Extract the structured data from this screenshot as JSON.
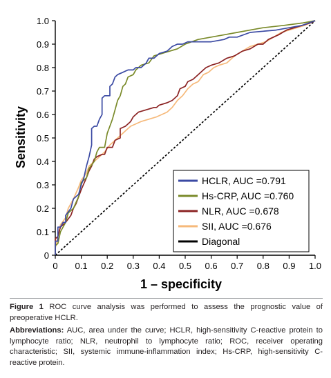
{
  "chart_data": {
    "type": "line",
    "title": "",
    "xlabel": "1 – specificity",
    "ylabel": "Sensitivity",
    "xlim": [
      0,
      1
    ],
    "ylim": [
      0,
      1
    ],
    "xticks": [
      "0",
      "0.1",
      "0.2",
      "0.3",
      "0.4",
      "0.5",
      "0.6",
      "0.7",
      "0.8",
      "0.9",
      "1.0"
    ],
    "yticks": [
      "0",
      "0.1",
      "0.2",
      "0.3",
      "0.4",
      "0.5",
      "0.6",
      "0.7",
      "0.8",
      "0.9",
      "1.0"
    ],
    "legend_position": "bottom-right",
    "series": [
      {
        "name": "HCLR, AUC =0.791",
        "color": "#3b4aa3",
        "points": [
          [
            0,
            0
          ],
          [
            0,
            0.06
          ],
          [
            0.01,
            0.06
          ],
          [
            0.01,
            0.12
          ],
          [
            0.02,
            0.12
          ],
          [
            0.03,
            0.14
          ],
          [
            0.04,
            0.14
          ],
          [
            0.04,
            0.17
          ],
          [
            0.06,
            0.2
          ],
          [
            0.07,
            0.24
          ],
          [
            0.09,
            0.26
          ],
          [
            0.1,
            0.3
          ],
          [
            0.11,
            0.33
          ],
          [
            0.12,
            0.38
          ],
          [
            0.13,
            0.42
          ],
          [
            0.14,
            0.47
          ],
          [
            0.14,
            0.54
          ],
          [
            0.15,
            0.55
          ],
          [
            0.16,
            0.55
          ],
          [
            0.17,
            0.58
          ],
          [
            0.18,
            0.6
          ],
          [
            0.18,
            0.67
          ],
          [
            0.19,
            0.68
          ],
          [
            0.21,
            0.68
          ],
          [
            0.21,
            0.72
          ],
          [
            0.22,
            0.73
          ],
          [
            0.23,
            0.76
          ],
          [
            0.24,
            0.77
          ],
          [
            0.26,
            0.78
          ],
          [
            0.28,
            0.79
          ],
          [
            0.3,
            0.79
          ],
          [
            0.31,
            0.8
          ],
          [
            0.33,
            0.8
          ],
          [
            0.35,
            0.82
          ],
          [
            0.36,
            0.84
          ],
          [
            0.38,
            0.84
          ],
          [
            0.4,
            0.86
          ],
          [
            0.43,
            0.87
          ],
          [
            0.45,
            0.89
          ],
          [
            0.47,
            0.9
          ],
          [
            0.49,
            0.9
          ],
          [
            0.51,
            0.91
          ],
          [
            0.6,
            0.91
          ],
          [
            0.65,
            0.92
          ],
          [
            0.67,
            0.93
          ],
          [
            0.7,
            0.93
          ],
          [
            0.75,
            0.95
          ],
          [
            0.85,
            0.96
          ],
          [
            0.9,
            0.97
          ],
          [
            0.95,
            0.98
          ],
          [
            1,
            1
          ]
        ]
      },
      {
        "name": "Hs-CRP, AUC =0.760",
        "color": "#7a8a2a",
        "points": [
          [
            0,
            0
          ],
          [
            0,
            0.04
          ],
          [
            0.01,
            0.05
          ],
          [
            0.02,
            0.1
          ],
          [
            0.04,
            0.14
          ],
          [
            0.05,
            0.18
          ],
          [
            0.07,
            0.2
          ],
          [
            0.09,
            0.25
          ],
          [
            0.1,
            0.31
          ],
          [
            0.12,
            0.33
          ],
          [
            0.13,
            0.37
          ],
          [
            0.15,
            0.4
          ],
          [
            0.16,
            0.44
          ],
          [
            0.17,
            0.46
          ],
          [
            0.19,
            0.46
          ],
          [
            0.2,
            0.52
          ],
          [
            0.21,
            0.55
          ],
          [
            0.22,
            0.58
          ],
          [
            0.23,
            0.62
          ],
          [
            0.24,
            0.66
          ],
          [
            0.25,
            0.68
          ],
          [
            0.26,
            0.72
          ],
          [
            0.27,
            0.73
          ],
          [
            0.28,
            0.76
          ],
          [
            0.3,
            0.77
          ],
          [
            0.31,
            0.79
          ],
          [
            0.33,
            0.81
          ],
          [
            0.36,
            0.82
          ],
          [
            0.38,
            0.85
          ],
          [
            0.41,
            0.86
          ],
          [
            0.44,
            0.87
          ],
          [
            0.47,
            0.88
          ],
          [
            0.5,
            0.9
          ],
          [
            0.55,
            0.92
          ],
          [
            0.6,
            0.93
          ],
          [
            0.65,
            0.94
          ],
          [
            0.7,
            0.95
          ],
          [
            0.75,
            0.96
          ],
          [
            0.8,
            0.97
          ],
          [
            0.88,
            0.98
          ],
          [
            0.95,
            0.99
          ],
          [
            1,
            1
          ]
        ]
      },
      {
        "name": "NLR, AUC =0.678",
        "color": "#8b2323",
        "points": [
          [
            0,
            0
          ],
          [
            0,
            0.07
          ],
          [
            0.01,
            0.08
          ],
          [
            0.02,
            0.12
          ],
          [
            0.04,
            0.14
          ],
          [
            0.06,
            0.17
          ],
          [
            0.07,
            0.2
          ],
          [
            0.08,
            0.22
          ],
          [
            0.1,
            0.28
          ],
          [
            0.12,
            0.33
          ],
          [
            0.13,
            0.36
          ],
          [
            0.14,
            0.38
          ],
          [
            0.15,
            0.41
          ],
          [
            0.16,
            0.42
          ],
          [
            0.18,
            0.43
          ],
          [
            0.19,
            0.43
          ],
          [
            0.2,
            0.46
          ],
          [
            0.22,
            0.46
          ],
          [
            0.23,
            0.49
          ],
          [
            0.25,
            0.5
          ],
          [
            0.25,
            0.54
          ],
          [
            0.27,
            0.55
          ],
          [
            0.28,
            0.56
          ],
          [
            0.29,
            0.57
          ],
          [
            0.3,
            0.59
          ],
          [
            0.32,
            0.61
          ],
          [
            0.35,
            0.62
          ],
          [
            0.38,
            0.63
          ],
          [
            0.39,
            0.63
          ],
          [
            0.4,
            0.64
          ],
          [
            0.43,
            0.65
          ],
          [
            0.45,
            0.66
          ],
          [
            0.47,
            0.68
          ],
          [
            0.48,
            0.71
          ],
          [
            0.5,
            0.72
          ],
          [
            0.51,
            0.74
          ],
          [
            0.53,
            0.75
          ],
          [
            0.55,
            0.77
          ],
          [
            0.57,
            0.79
          ],
          [
            0.58,
            0.8
          ],
          [
            0.6,
            0.81
          ],
          [
            0.63,
            0.82
          ],
          [
            0.66,
            0.84
          ],
          [
            0.69,
            0.85
          ],
          [
            0.72,
            0.87
          ],
          [
            0.75,
            0.88
          ],
          [
            0.78,
            0.9
          ],
          [
            0.8,
            0.9
          ],
          [
            0.82,
            0.92
          ],
          [
            0.84,
            0.93
          ],
          [
            0.86,
            0.94
          ],
          [
            0.89,
            0.96
          ],
          [
            0.92,
            0.97
          ],
          [
            0.95,
            0.98
          ],
          [
            0.98,
            0.99
          ],
          [
            1,
            1
          ]
        ]
      },
      {
        "name": "SII, AUC =0.676",
        "color": "#f6b97a",
        "points": [
          [
            0,
            0
          ],
          [
            0,
            0.03
          ],
          [
            0.01,
            0.08
          ],
          [
            0.02,
            0.13
          ],
          [
            0.04,
            0.16
          ],
          [
            0.05,
            0.2
          ],
          [
            0.07,
            0.24
          ],
          [
            0.09,
            0.29
          ],
          [
            0.1,
            0.32
          ],
          [
            0.12,
            0.35
          ],
          [
            0.13,
            0.38
          ],
          [
            0.15,
            0.4
          ],
          [
            0.17,
            0.42
          ],
          [
            0.19,
            0.44
          ],
          [
            0.21,
            0.47
          ],
          [
            0.23,
            0.49
          ],
          [
            0.25,
            0.51
          ],
          [
            0.27,
            0.53
          ],
          [
            0.29,
            0.55
          ],
          [
            0.31,
            0.56
          ],
          [
            0.33,
            0.57
          ],
          [
            0.36,
            0.58
          ],
          [
            0.39,
            0.59
          ],
          [
            0.41,
            0.6
          ],
          [
            0.43,
            0.61
          ],
          [
            0.45,
            0.63
          ],
          [
            0.47,
            0.66
          ],
          [
            0.49,
            0.68
          ],
          [
            0.51,
            0.71
          ],
          [
            0.53,
            0.73
          ],
          [
            0.55,
            0.74
          ],
          [
            0.57,
            0.77
          ],
          [
            0.59,
            0.78
          ],
          [
            0.61,
            0.8
          ],
          [
            0.63,
            0.81
          ],
          [
            0.66,
            0.82
          ],
          [
            0.69,
            0.85
          ],
          [
            0.72,
            0.87
          ],
          [
            0.75,
            0.89
          ],
          [
            0.78,
            0.9
          ],
          [
            0.81,
            0.91
          ],
          [
            0.84,
            0.93
          ],
          [
            0.87,
            0.95
          ],
          [
            0.9,
            0.96
          ],
          [
            0.93,
            0.97
          ],
          [
            0.96,
            0.98
          ],
          [
            1,
            1
          ]
        ]
      },
      {
        "name": "Diagonal",
        "color": "#000000",
        "dashed": true,
        "points": [
          [
            0,
            0
          ],
          [
            1,
            1
          ]
        ]
      }
    ]
  },
  "caption": {
    "figure_label": "Figure 1",
    "figure_text": " ROC curve analysis was performed to assess the prognostic value of preoperative HCLR.",
    "abbrev_label": "Abbreviations:",
    "abbrev_text": " AUC, area under the curve; HCLR, high-sensitivity C-reactive protein to lymphocyte ratio; NLR, neutrophil to lymphocyte ratio; ROC, receiver operating characteristic; SII, systemic immune-inflammation index; Hs-CRP, high-sensitivity C-reactive protein."
  }
}
